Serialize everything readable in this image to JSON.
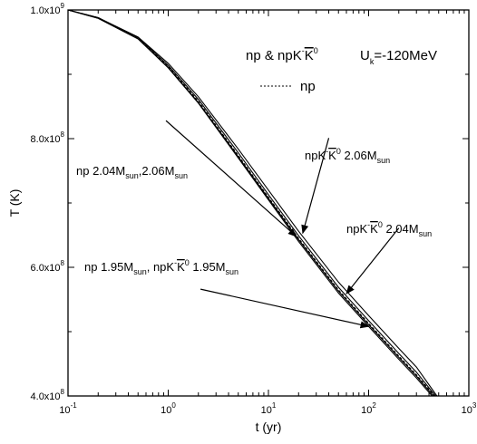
{
  "chart_data": {
    "type": "line",
    "xlabel": "t (yr)",
    "ylabel": "T (K)",
    "xscale": "log",
    "xlim": [
      0.1,
      1000
    ],
    "ylim": [
      400000000,
      1000000000
    ],
    "grid": false,
    "x_ticks": [
      {
        "value": 0.1,
        "base": "10",
        "exp": "-1"
      },
      {
        "value": 1,
        "base": "10",
        "exp": "0"
      },
      {
        "value": 10,
        "base": "10",
        "exp": "1"
      },
      {
        "value": 100,
        "base": "10",
        "exp": "2"
      },
      {
        "value": 1000,
        "base": "10",
        "exp": "3"
      }
    ],
    "y_ticks": [
      {
        "value": 400000000,
        "mantissa": "4.0x10",
        "exp": "8"
      },
      {
        "value": 600000000,
        "mantissa": "6.0x10",
        "exp": "8"
      },
      {
        "value": 800000000,
        "mantissa": "8.0x10",
        "exp": "8"
      },
      {
        "value": 1000000000,
        "mantissa": "1.0x10",
        "exp": "9"
      }
    ],
    "series": [
      {
        "key": "np_195",
        "style": "solid",
        "x": [
          0.1,
          0.2,
          0.5,
          1,
          2,
          5,
          10,
          20,
          50,
          100,
          200,
          300,
          430
        ],
        "y": [
          1000000000,
          987000000,
          955000000,
          910000000,
          855000000,
          770000000,
          705000000,
          640000000,
          560000000,
          508000000,
          457000000,
          428000000,
          400000000
        ]
      },
      {
        "key": "np_204",
        "style": "solid",
        "x": [
          0.1,
          0.2,
          0.5,
          1,
          2,
          5,
          10,
          20,
          50,
          100,
          200,
          300,
          445
        ],
        "y": [
          1000000000,
          987000000,
          955000000,
          911000000,
          856000000,
          772000000,
          707000000,
          643000000,
          563000000,
          511000000,
          460000000,
          431000000,
          400000000
        ]
      },
      {
        "key": "np_206",
        "style": "dashed",
        "x": [
          0.1,
          0.2,
          0.5,
          1,
          2,
          5,
          10,
          20,
          50,
          100,
          200,
          300,
          455
        ],
        "y": [
          1000000000,
          988000000,
          956000000,
          912000000,
          858000000,
          774000000,
          709000000,
          645000000,
          565000000,
          513000000,
          462000000,
          433000000,
          400000000
        ]
      },
      {
        "key": "npk_204",
        "style": "solid",
        "x": [
          0.1,
          0.2,
          0.5,
          1,
          2,
          5,
          10,
          20,
          50,
          100,
          200,
          300,
          465
        ],
        "y": [
          1000000000,
          988000000,
          957000000,
          914000000,
          861000000,
          778000000,
          713000000,
          649000000,
          569000000,
          517000000,
          466000000,
          437000000,
          400000000
        ]
      },
      {
        "key": "npk_206",
        "style": "solid",
        "x": [
          0.1,
          0.2,
          0.5,
          1,
          2,
          5,
          10,
          20,
          50,
          100,
          200,
          300,
          480
        ],
        "y": [
          1000000000,
          988000000,
          958000000,
          917000000,
          865000000,
          784000000,
          720000000,
          656000000,
          577000000,
          525000000,
          474000000,
          445000000,
          400000000
        ]
      }
    ],
    "legend": {
      "title": "np & npK",
      "title_sup": "-",
      "title_kbar": "K",
      "title_kbar_sup": "0",
      "param": "U",
      "param_sub": "k",
      "param_value": "=-120MeV",
      "dashed_label": "np"
    },
    "annotations": [
      {
        "key": "a1",
        "parts": [
          "np  2.04M",
          "sun",
          ",2.06M",
          "sun"
        ],
        "arrow_from": [
          0.95,
          828000000
        ],
        "arrow_to": [
          19,
          648000000
        ]
      },
      {
        "key": "a2",
        "parts": [
          "npK",
          "-",
          "K",
          "0",
          " 2.06M",
          "sun"
        ],
        "arrow_from": [
          40,
          801000000
        ],
        "arrow_to": [
          22,
          653000000
        ]
      },
      {
        "key": "a3",
        "parts": [
          "npK",
          "-",
          "K",
          "0",
          " 2.04M",
          "sun"
        ],
        "arrow_from": [
          200,
          661000000
        ],
        "arrow_to": [
          60,
          559000000
        ]
      },
      {
        "key": "a4",
        "parts": [
          "np 1.95M",
          "sun",
          ", npK",
          "-",
          "K",
          "0",
          " 1.95M",
          "sun"
        ],
        "arrow_from": [
          2.1,
          566000000
        ],
        "arrow_to": [
          100,
          508000000
        ]
      }
    ]
  }
}
